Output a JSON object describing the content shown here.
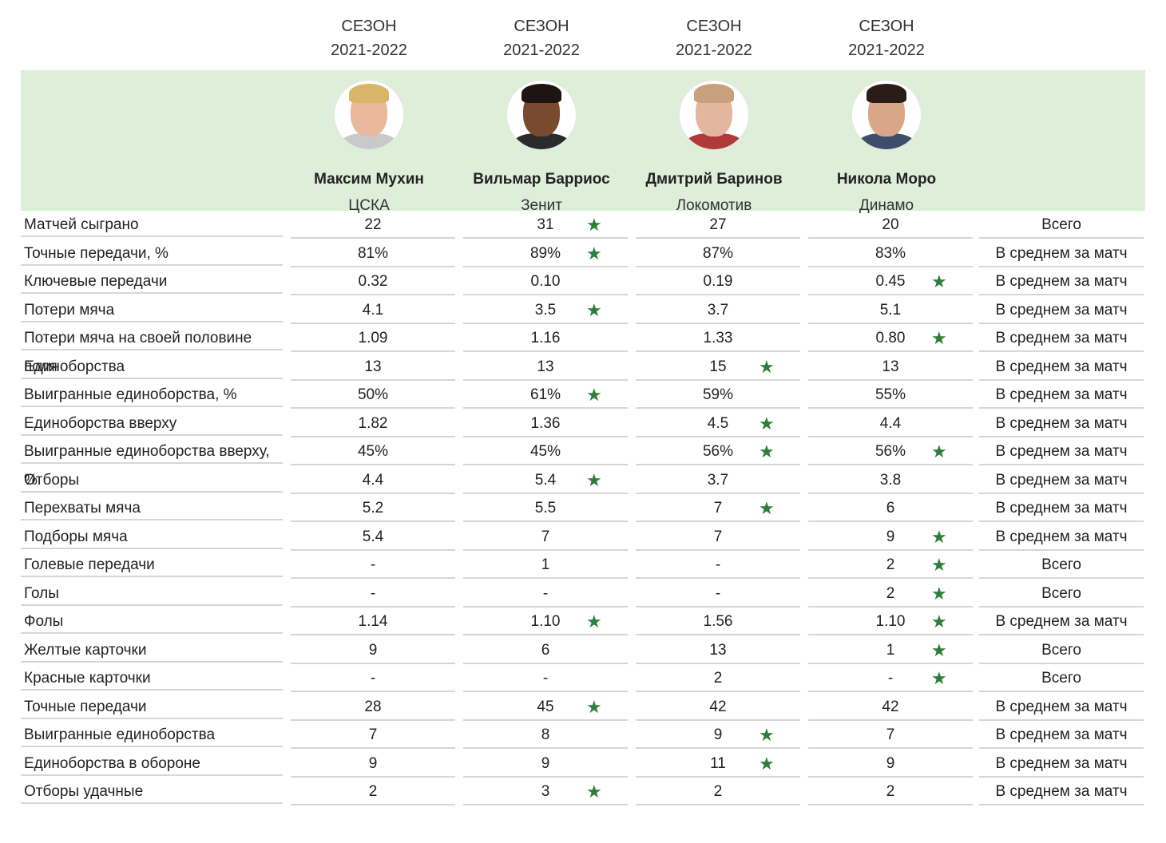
{
  "season": {
    "line1": "СЕЗОН",
    "line2": "2021-2022"
  },
  "players": [
    {
      "name": "Максим Мухин",
      "club": "ЦСКА"
    },
    {
      "name": "Вильмар Барриос",
      "club": "Зенит"
    },
    {
      "name": "Дмитрий Баринов",
      "club": "Локомотив"
    },
    {
      "name": "Никола Моро",
      "club": "Динамо"
    }
  ],
  "rows": [
    {
      "label": "Матчей сыграно",
      "values": [
        "22",
        "31",
        "27",
        "20"
      ],
      "stars": [
        false,
        true,
        false,
        false
      ],
      "note": "Всего"
    },
    {
      "label": "Точные передачи, %",
      "values": [
        "81%",
        "89%",
        "87%",
        "83%"
      ],
      "stars": [
        false,
        true,
        false,
        false
      ],
      "note": "В среднем за матч"
    },
    {
      "label": "Ключевые передачи",
      "values": [
        "0.32",
        "0.10",
        "0.19",
        "0.45"
      ],
      "stars": [
        false,
        false,
        false,
        true
      ],
      "note": "В среднем за матч"
    },
    {
      "label": "Потери мяча",
      "values": [
        "4.1",
        "3.5",
        "3.7",
        "5.1"
      ],
      "stars": [
        false,
        true,
        false,
        false
      ],
      "note": "В среднем за матч"
    },
    {
      "label": "Потери мяча на своей половине поля",
      "values": [
        "1.09",
        "1.16",
        "1.33",
        "0.80"
      ],
      "stars": [
        false,
        false,
        false,
        true
      ],
      "note": "В среднем за матч"
    },
    {
      "label": "Единоборства",
      "values": [
        "13",
        "13",
        "15",
        "13"
      ],
      "stars": [
        false,
        false,
        true,
        false
      ],
      "note": "В среднем за матч"
    },
    {
      "label": "Выигранные единоборства, %",
      "values": [
        "50%",
        "61%",
        "59%",
        "55%"
      ],
      "stars": [
        false,
        true,
        false,
        false
      ],
      "note": "В среднем за матч"
    },
    {
      "label": "Единоборства вверху",
      "values": [
        "1.82",
        "1.36",
        "4.5",
        "4.4"
      ],
      "stars": [
        false,
        false,
        true,
        false
      ],
      "note": "В среднем за матч"
    },
    {
      "label": "Выигранные единоборства вверху, %",
      "values": [
        "45%",
        "45%",
        "56%",
        "56%"
      ],
      "stars": [
        false,
        false,
        true,
        true
      ],
      "note": "В среднем за матч"
    },
    {
      "label": "Отборы",
      "values": [
        "4.4",
        "5.4",
        "3.7",
        "3.8"
      ],
      "stars": [
        false,
        true,
        false,
        false
      ],
      "note": "В среднем за матч"
    },
    {
      "label": "Перехваты мяча",
      "values": [
        "5.2",
        "5.5",
        "7",
        "6"
      ],
      "stars": [
        false,
        false,
        true,
        false
      ],
      "note": "В среднем за матч"
    },
    {
      "label": "Подборы мяча",
      "values": [
        "5.4",
        "7",
        "7",
        "9"
      ],
      "stars": [
        false,
        false,
        false,
        true
      ],
      "note": "В среднем за матч"
    },
    {
      "label": "Голевые передачи",
      "values": [
        "-",
        "1",
        "-",
        "2"
      ],
      "stars": [
        false,
        false,
        false,
        true
      ],
      "note": "Всего"
    },
    {
      "label": "Голы",
      "values": [
        "-",
        "-",
        "-",
        "2"
      ],
      "stars": [
        false,
        false,
        false,
        true
      ],
      "note": "Всего"
    },
    {
      "label": "Фолы",
      "values": [
        "1.14",
        "1.10",
        "1.56",
        "1.10"
      ],
      "stars": [
        false,
        true,
        false,
        true
      ],
      "note": "В среднем за матч"
    },
    {
      "label": "Желтые карточки",
      "values": [
        "9",
        "6",
        "13",
        "1"
      ],
      "stars": [
        false,
        false,
        false,
        true
      ],
      "note": "Всего"
    },
    {
      "label": "Красные карточки",
      "values": [
        "-",
        "-",
        "2",
        "-"
      ],
      "stars": [
        false,
        false,
        false,
        true
      ],
      "note": "Всего"
    },
    {
      "label": "Точные передачи",
      "values": [
        "28",
        "45",
        "42",
        "42"
      ],
      "stars": [
        false,
        true,
        false,
        false
      ],
      "note": "В среднем за матч"
    },
    {
      "label": "Выигранные единоборства",
      "values": [
        "7",
        "8",
        "9",
        "7"
      ],
      "stars": [
        false,
        false,
        true,
        false
      ],
      "note": "В среднем за матч"
    },
    {
      "label": "Единоборства в обороне",
      "values": [
        "9",
        "9",
        "11",
        "9"
      ],
      "stars": [
        false,
        false,
        true,
        false
      ],
      "note": "В среднем за матч"
    },
    {
      "label": "Отборы удачные",
      "values": [
        "2",
        "3",
        "2",
        "2"
      ],
      "stars": [
        false,
        true,
        false,
        false
      ],
      "note": "В среднем за матч"
    }
  ],
  "star_icon": "star-icon",
  "colors": {
    "banner": "#ddefd9",
    "star": "#2e7d3a",
    "rule": "#d6d6d6"
  }
}
